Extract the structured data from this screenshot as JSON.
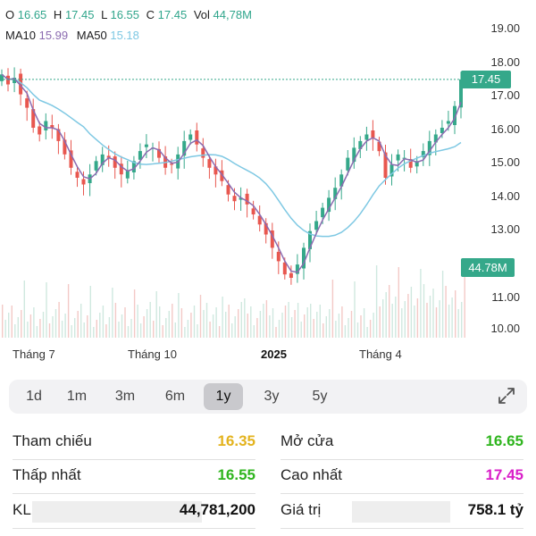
{
  "ohlc": {
    "o_label": "O",
    "o_value": "16.65",
    "h_label": "H",
    "h_value": "17.45",
    "l_label": "L",
    "l_value": "16.55",
    "c_label": "C",
    "c_value": "17.45",
    "vol_label": "Vol",
    "vol_value": "44,78M"
  },
  "ma": {
    "ma10_label": "MA10",
    "ma10_value": "15.99",
    "ma50_label": "MA50",
    "ma50_value": "15.18"
  },
  "last_price_tag": "17.45",
  "volume_tag": "44.78M",
  "y_ticks": [
    "19.00",
    "18.00",
    "17.00",
    "16.00",
    "15.00",
    "14.00",
    "13.00",
    "12.00",
    "11.00",
    "10.00"
  ],
  "x_labels": [
    "Tháng 7",
    "Tháng 10",
    "2025",
    "Tháng 4"
  ],
  "colors": {
    "up": "#35a88a",
    "down": "#e8574f",
    "ma10": "#8b6bb0",
    "ma50": "#7ec8e3",
    "accent": "#35a88a"
  },
  "chart_data": {
    "type": "candlestick",
    "x_labels": [
      "Tháng 7",
      "Tháng 10",
      "2025",
      "Tháng 4"
    ],
    "ylim": [
      10,
      19.5
    ],
    "close_series": [
      17.6,
      17.3,
      17.5,
      17.0,
      16.6,
      16.0,
      15.8,
      16.2,
      16.0,
      15.6,
      15.2,
      14.8,
      14.5,
      14.3,
      14.6,
      15.0,
      15.2,
      15.1,
      14.8,
      14.6,
      14.7,
      15.0,
      15.3,
      15.5,
      15.4,
      15.1,
      14.8,
      14.9,
      15.2,
      15.6,
      15.8,
      15.5,
      15.1,
      14.8,
      14.6,
      14.4,
      14.0,
      13.8,
      13.9,
      13.7,
      13.4,
      13.1,
      12.8,
      12.4,
      12.0,
      11.6,
      11.5,
      11.9,
      12.4,
      12.9,
      13.2,
      13.6,
      13.9,
      14.2,
      14.6,
      15.1,
      15.4,
      15.6,
      15.8,
      15.7,
      15.3,
      14.5,
      14.9,
      15.2,
      15.1,
      14.8,
      15.0,
      15.3,
      15.6,
      15.8,
      16.0,
      16.2,
      16.65,
      17.45
    ],
    "ma10_last": 15.99,
    "ma50_last": 15.18,
    "last_close": 17.45
  },
  "range_tabs": [
    "1d",
    "1m",
    "3m",
    "6m",
    "1y",
    "3y",
    "5y"
  ],
  "active_range": "1y",
  "stats": {
    "ref_label": "Tham chiếu",
    "ref_value": "16.35",
    "open_label": "Mở cửa",
    "open_value": "16.65",
    "low_label": "Thấp nhất",
    "low_value": "16.55",
    "high_label": "Cao nhất",
    "high_value": "17.45",
    "vol_label": "KL",
    "vol_value": "44,781,200",
    "val_label": "Giá trị",
    "val_value": "758.1 tỷ"
  }
}
